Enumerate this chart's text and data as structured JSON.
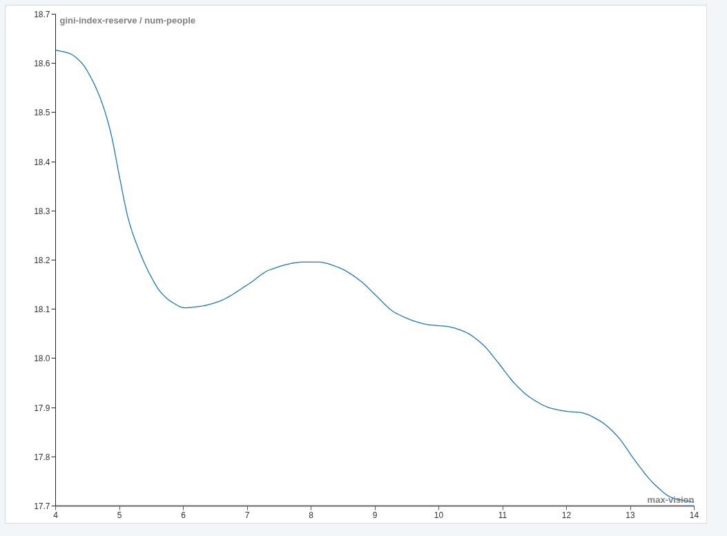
{
  "chart_data": {
    "type": "line",
    "xlabel": "max-vision",
    "ylabel": "gini-index-reserve / num-people",
    "series": [
      {
        "color": "#1f77b4",
        "x": [
          4.0,
          4.22,
          4.4,
          4.57,
          4.72,
          4.86,
          5.01,
          5.14,
          5.3,
          5.48,
          5.65,
          5.84,
          6.02,
          6.27,
          6.56,
          7.03,
          7.35,
          7.89,
          8.11,
          8.43,
          8.79,
          9.0,
          9.33,
          9.87,
          10.13,
          10.41,
          10.7,
          10.89,
          11.21,
          11.46,
          11.75,
          12.03,
          12.22,
          12.51,
          12.79,
          13.08,
          13.37,
          13.65,
          14.0
        ],
        "values": [
          18.627,
          18.62,
          18.602,
          18.567,
          18.522,
          18.461,
          18.363,
          18.283,
          18.222,
          18.17,
          18.134,
          18.113,
          18.103,
          18.106,
          18.116,
          18.152,
          18.18,
          18.196,
          18.196,
          18.185,
          18.156,
          18.13,
          18.092,
          18.068,
          18.065,
          18.054,
          18.027,
          17.998,
          17.946,
          17.918,
          17.899,
          17.892,
          17.89,
          17.874,
          17.843,
          17.791,
          17.745,
          17.717,
          17.707
        ]
      }
    ],
    "xlim": [
      4,
      14
    ],
    "ylim": [
      17.7,
      18.7
    ],
    "xticks": [
      4,
      5,
      6,
      7,
      8,
      9,
      10,
      11,
      12,
      13,
      14
    ],
    "yticks": [
      17.7,
      17.8,
      17.9,
      {
        "value": 18,
        "label": "18.0"
      },
      18.1,
      18.2,
      18.3,
      18.4,
      18.5,
      18.6,
      18.7
    ]
  }
}
